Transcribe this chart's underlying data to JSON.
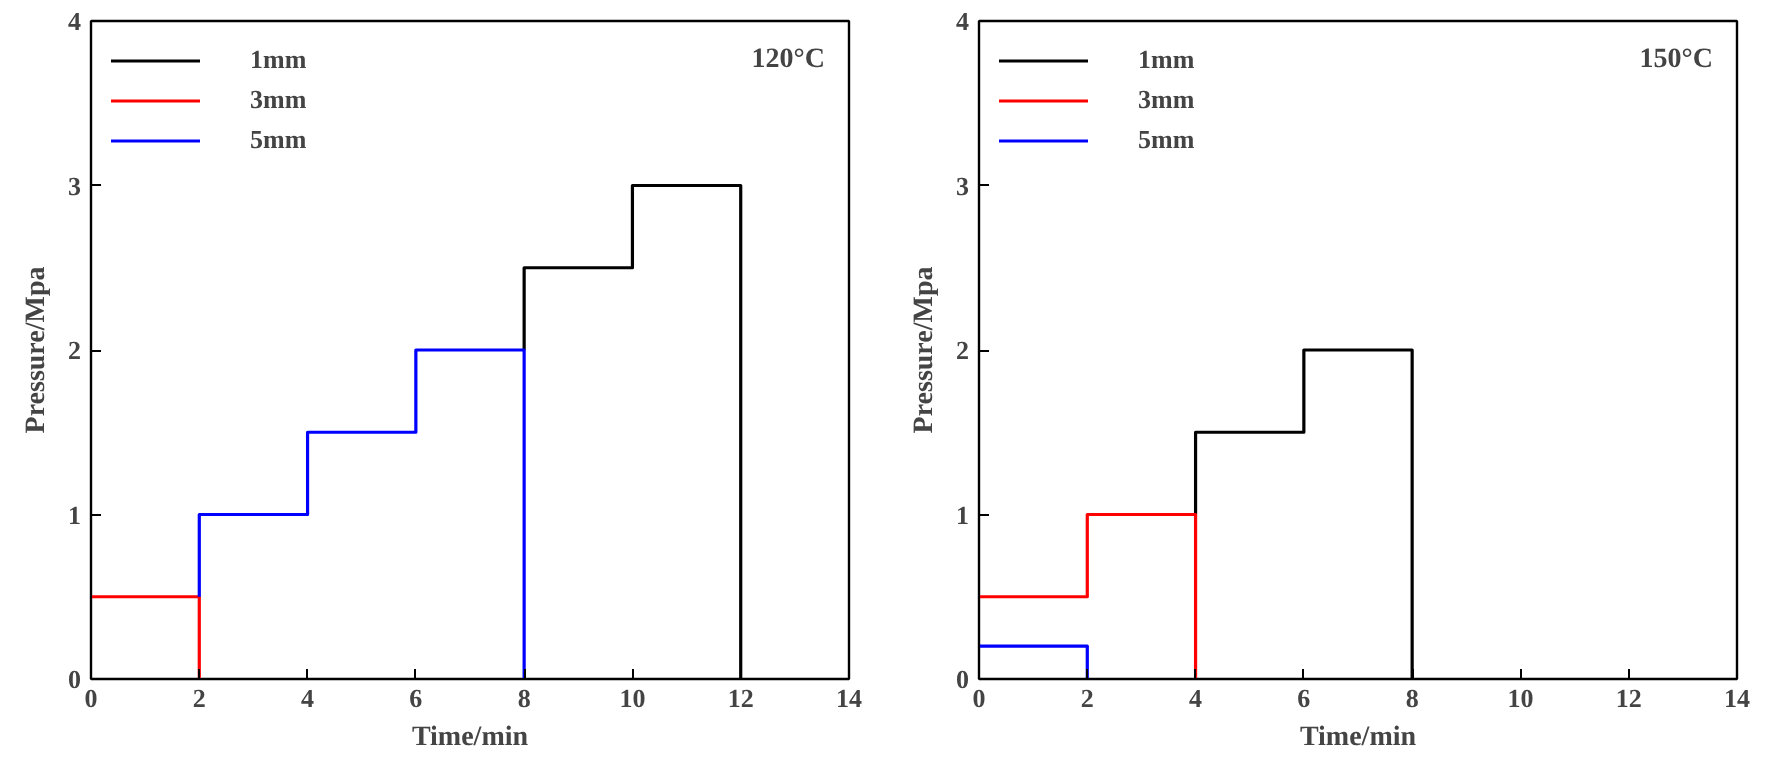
{
  "chart_data": [
    {
      "type": "step",
      "xlabel": "Time/min",
      "ylabel": "Pressure/Mpa",
      "xlim": [
        0,
        14
      ],
      "ylim": [
        0,
        4
      ],
      "xticks": [
        0,
        2,
        4,
        6,
        8,
        10,
        12,
        14
      ],
      "yticks": [
        0,
        1,
        2,
        3,
        4
      ],
      "legend": "top left",
      "annotations": [
        "120°C"
      ],
      "series": [
        {
          "name": "1mm",
          "color": "#000000",
          "x": [
            8,
            8,
            10,
            12
          ],
          "values": [
            2,
            2.5,
            3,
            0
          ]
        },
        {
          "name": "3mm",
          "color": "#ff0000",
          "x": [
            0,
            2
          ],
          "values": [
            0.5,
            0
          ]
        },
        {
          "name": "5mm",
          "color": "#0000ff",
          "x": [
            2,
            2,
            4,
            6,
            8
          ],
          "values": [
            0.5,
            1,
            1.5,
            2,
            0
          ]
        }
      ]
    },
    {
      "type": "step",
      "xlabel": "Time/min",
      "ylabel": "Pressure/Mpa",
      "xlim": [
        0,
        14
      ],
      "ylim": [
        0,
        4
      ],
      "xticks": [
        0,
        2,
        4,
        6,
        8,
        10,
        12,
        14
      ],
      "yticks": [
        0,
        1,
        2,
        3,
        4
      ],
      "legend": "top left",
      "annotations": [
        "150°C"
      ],
      "series": [
        {
          "name": "1mm",
          "color": "#000000",
          "x": [
            4,
            4,
            6,
            8
          ],
          "values": [
            1,
            1.5,
            2,
            0
          ]
        },
        {
          "name": "3mm",
          "color": "#ff0000",
          "x": [
            0,
            2,
            4
          ],
          "values": [
            0.5,
            1,
            0
          ]
        },
        {
          "name": "5mm",
          "color": "#0000ff",
          "x": [
            0,
            2
          ],
          "values": [
            0.2,
            0
          ]
        }
      ]
    }
  ]
}
